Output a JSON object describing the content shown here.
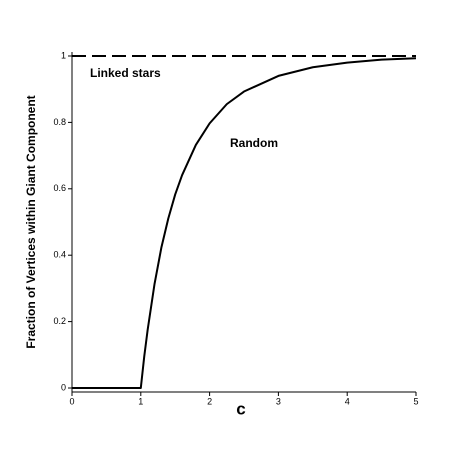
{
  "chart_data": {
    "type": "line",
    "x_label": "c",
    "y_label": "Fraction of Vertices within Giant Component",
    "x": [
      0,
      1,
      1.05,
      1.1,
      1.2,
      1.3,
      1.4,
      1.5,
      1.6,
      1.8,
      2,
      2.25,
      2.5,
      3,
      3.5,
      4,
      4.5,
      5
    ],
    "series": [
      {
        "name": "Linked stars",
        "color": "#000000",
        "dashed": true,
        "values": [
          1,
          1,
          1,
          1,
          1,
          1,
          1,
          1,
          1,
          1,
          1,
          1,
          1,
          1,
          1,
          1,
          1,
          1
        ]
      },
      {
        "name": "Random",
        "color": "#000000",
        "dashed": false,
        "values": [
          0,
          0,
          0.095,
          0.176,
          0.314,
          0.424,
          0.511,
          0.583,
          0.641,
          0.732,
          0.797,
          0.855,
          0.893,
          0.94,
          0.966,
          0.98,
          0.989,
          0.993
        ]
      }
    ],
    "xlim": [
      0,
      5
    ],
    "xticks": [
      0,
      1,
      2,
      3,
      4,
      5
    ],
    "ylim": [
      -0.012,
      1.012
    ],
    "yticks": [
      0,
      0.2,
      0.4,
      0.6,
      0.8,
      1
    ],
    "grid": false
  }
}
